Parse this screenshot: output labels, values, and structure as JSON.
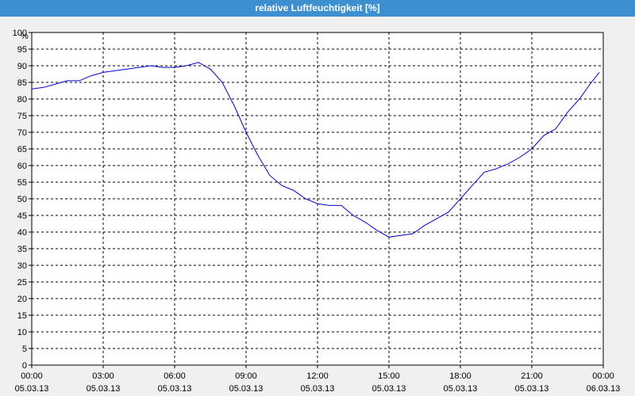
{
  "window": {
    "title": "relative Luftfeuchtigkeit [%]"
  },
  "chart_data": {
    "type": "line",
    "title": "relative Luftfeuchtigkeit [%]",
    "y_unit_label": "%",
    "ylim": [
      0,
      100
    ],
    "y_ticks": [
      0,
      5,
      10,
      15,
      20,
      25,
      30,
      35,
      40,
      45,
      50,
      55,
      60,
      65,
      70,
      75,
      80,
      85,
      90,
      95,
      100
    ],
    "x_hours_range": [
      0,
      24
    ],
    "x_ticks": [
      {
        "time": "00:00",
        "date": "05.03.13"
      },
      {
        "time": "03:00",
        "date": "05.03.13"
      },
      {
        "time": "06:00",
        "date": "05.03.13"
      },
      {
        "time": "09:00",
        "date": "05.03.13"
      },
      {
        "time": "12:00",
        "date": "05.03.13"
      },
      {
        "time": "15:00",
        "date": "05.03.13"
      },
      {
        "time": "18:00",
        "date": "05.03.13"
      },
      {
        "time": "21:00",
        "date": "05.03.13"
      },
      {
        "time": "00:00",
        "date": "06.03.13"
      }
    ],
    "grid": true,
    "line_color": "#0000cc",
    "series": [
      {
        "x": [
          "00:00",
          "00:30",
          "01:00",
          "01:30",
          "02:00",
          "02:30",
          "03:00",
          "03:30",
          "04:00",
          "04:30",
          "05:00",
          "05:30",
          "06:00",
          "06:30",
          "07:00",
          "07:30",
          "08:00",
          "08:30",
          "09:00",
          "09:30",
          "10:00",
          "10:30",
          "11:00",
          "11:30",
          "12:00",
          "12:30",
          "13:00",
          "13:30",
          "14:00",
          "14:30",
          "15:00",
          "15:30",
          "16:00",
          "16:30",
          "17:00",
          "17:30",
          "18:00",
          "18:30",
          "19:00",
          "19:30",
          "20:00",
          "20:30",
          "21:00",
          "21:30",
          "22:00",
          "22:30",
          "23:00",
          "23:30",
          "23:50"
        ],
        "values": [
          83,
          83.5,
          84.5,
          85.5,
          85.5,
          87,
          88,
          88.5,
          89,
          89.5,
          90,
          89.5,
          89.5,
          90,
          91,
          89,
          85,
          78,
          70,
          63,
          57,
          54,
          52.5,
          50,
          48.5,
          48,
          48,
          45,
          43,
          40.5,
          38.5,
          39,
          39.5,
          42,
          44,
          46,
          50,
          54,
          58,
          59,
          60.5,
          62.5,
          65,
          69,
          71,
          76,
          80,
          85,
          88
        ]
      }
    ]
  }
}
